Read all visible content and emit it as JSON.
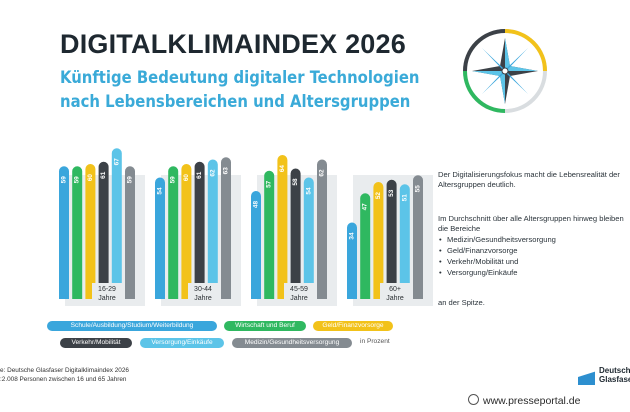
{
  "title": "DIGITALKLIMAINDEX 2026",
  "subtitle": "Künftige Bedeutung digitaler Technologien nach Lebensbereichen und Altersgruppen",
  "colors": {
    "series": [
      "#3aa6dc",
      "#2fb860",
      "#f2c21a",
      "#3c4147",
      "#5cc4e8",
      "#848b91"
    ],
    "subtitle": "#3aaad8",
    "panel": "#e9ecee"
  },
  "chart_data": {
    "type": "bar",
    "categories": [
      "16-29 Jahre",
      "30-44 Jahre",
      "45-59 Jahre",
      "60+ Jahre"
    ],
    "category_labels": [
      [
        "16-29",
        "Jahre"
      ],
      [
        "30-44",
        "Jahre"
      ],
      [
        "45-59",
        "Jahre"
      ],
      [
        "60+",
        "Jahre"
      ]
    ],
    "series": [
      {
        "name": "Schule/Ausbildung/Studium/Weiterbildung",
        "values": [
          59,
          54,
          48,
          34
        ]
      },
      {
        "name": "Wirtschaft und Beruf",
        "values": [
          59,
          59,
          57,
          47
        ]
      },
      {
        "name": "Geld/Finanzvorsorge",
        "values": [
          60,
          60,
          64,
          52
        ]
      },
      {
        "name": "Verkehr/Mobilität",
        "values": [
          61,
          61,
          58,
          53
        ]
      },
      {
        "name": "Versorgung/Einkäufe",
        "values": [
          67,
          62,
          54,
          51
        ]
      },
      {
        "name": "Medizin/Gesundheitsversorgung",
        "values": [
          59,
          63,
          62,
          55
        ]
      }
    ],
    "unit": "in Prozent",
    "ylim": [
      0,
      100
    ],
    "legend_position": "bottom"
  },
  "notes": {
    "intro": "Der Digitalisierungsfokus macht die Lebensrealität der Altersgruppen deutlich.",
    "lead": "Im Durchschnitt über alle Altersgruppen hinweg bleiben die Bereiche",
    "items": [
      "Medizin/Gesundheitsversorgung",
      "Geld/Finanzvorsorge",
      "Verkehr/Mobilität und",
      "Versorgung/Einkäufe"
    ],
    "outro": "an der Spitze."
  },
  "legend_unit": "in Prozent",
  "source": {
    "line1": "e: Deutsche Glasfaser Digitalklimaindex 2026",
    "line2": ":2.008 Personen zwischen 16 und 65 Jahren"
  },
  "brand": {
    "line1": "Deutsche",
    "line2": "Glasfaser"
  },
  "watermark": "www.presseportal.de",
  "icons": {
    "compass": "compass-icon",
    "logo": "deutsche-glasfaser-logo",
    "watermark": "presseportal-icon"
  }
}
